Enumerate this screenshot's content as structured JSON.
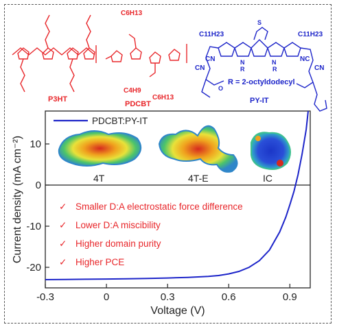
{
  "molecules": [
    {
      "label": "P3HT",
      "color": "#e8262a"
    },
    {
      "label": "PDCBT",
      "color": "#e8262a",
      "substituent_top": "C6H13",
      "substituent_bottom": "C4H9",
      "substituent_bottom2": "C6H13"
    },
    {
      "label": "PY-IT",
      "color": "#1c24c9",
      "r_group": "R = 2-octyldodecyl",
      "chain": "C11H23",
      "cn": "CN",
      "nc": "NC",
      "n": "N",
      "r": "R",
      "s": "S",
      "o": "O"
    }
  ],
  "chart_data": {
    "type": "line",
    "xlabel": "Voltage (V)",
    "ylabel": "Current density (mA cm⁻²)",
    "xlim": [
      -0.3,
      1.0
    ],
    "ylim": [
      -25,
      18
    ],
    "xticks": [
      "-0.3",
      "0",
      "0.3",
      "0.6",
      "0.9"
    ],
    "xtick_values": [
      -0.3,
      0,
      0.3,
      0.6,
      0.9
    ],
    "yticks": [
      "-20",
      "-10",
      "0",
      "10"
    ],
    "ytick_values": [
      -20,
      -10,
      0,
      10
    ],
    "legend_position": "top-left",
    "series": [
      {
        "name": "PDCBT:PY-IT",
        "color": "#1c24c9",
        "x": [
          -0.3,
          -0.2,
          -0.1,
          0.0,
          0.1,
          0.2,
          0.3,
          0.4,
          0.5,
          0.55,
          0.6,
          0.65,
          0.7,
          0.75,
          0.8,
          0.85,
          0.88,
          0.9,
          0.92,
          0.94,
          0.96,
          0.98,
          0.99
        ],
        "y": [
          -23.0,
          -22.95,
          -22.9,
          -22.85,
          -22.8,
          -22.7,
          -22.6,
          -22.45,
          -22.2,
          -22.0,
          -21.6,
          -21.0,
          -20.0,
          -18.4,
          -15.8,
          -11.4,
          -7.8,
          -4.8,
          -1.6,
          2.5,
          7.5,
          13.5,
          18.0
        ]
      }
    ],
    "annotations": {
      "esp_labels": [
        "4T",
        "4T-E",
        "IC"
      ],
      "bullet_mark": "✓",
      "bullets": [
        "Smaller D:A electrostatic force difference",
        "Lower D:A miscibility",
        "Higher domain purity",
        "Higher PCE"
      ]
    }
  }
}
